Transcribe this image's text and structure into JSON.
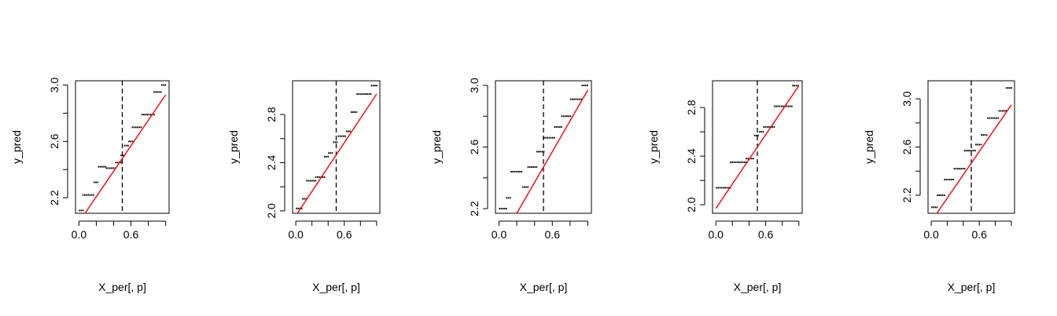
{
  "colors": {
    "points": "#000000",
    "fit_line": "#ff0000",
    "vline": "#000000",
    "frame": "#000000"
  },
  "chart_data": [
    {
      "type": "scatter",
      "xlabel": "X_per[, p]",
      "ylabel": "y_pred",
      "xlim": [
        -0.04,
        1.04
      ],
      "ylim": [
        2.09,
        3.03
      ],
      "xticks": [
        0.0,
        0.2,
        0.4,
        0.6,
        0.8,
        1.0
      ],
      "xtick_labels": [
        "0.0",
        "0.6"
      ],
      "yticks": [
        2.2,
        2.4,
        2.6,
        2.8,
        3.0
      ],
      "ytick_labels": [
        "2.2",
        "2.6",
        "3.0"
      ],
      "vline_x": 0.5,
      "fit_line": {
        "x": [
          0.07,
          1.0
        ],
        "y": [
          2.09,
          2.93
        ]
      },
      "steps": [
        [
          0.0,
          0.04,
          2.11
        ],
        [
          0.04,
          0.16,
          2.22
        ],
        [
          0.17,
          0.22,
          2.31
        ],
        [
          0.22,
          0.31,
          2.42
        ],
        [
          0.31,
          0.42,
          2.41
        ],
        [
          0.42,
          0.48,
          2.45
        ],
        [
          0.48,
          0.52,
          2.5
        ],
        [
          0.52,
          0.57,
          2.57
        ],
        [
          0.57,
          0.61,
          2.6
        ],
        [
          0.61,
          0.72,
          2.7
        ],
        [
          0.72,
          0.86,
          2.79
        ],
        [
          0.86,
          0.95,
          2.95
        ],
        [
          0.95,
          1.0,
          3.0
        ]
      ]
    },
    {
      "type": "scatter",
      "xlabel": "X_per[, p]",
      "ylabel": "y_pred",
      "xlim": [
        -0.04,
        1.04
      ],
      "ylim": [
        1.98,
        3.08
      ],
      "xticks": [
        0.0,
        0.2,
        0.4,
        0.6,
        0.8,
        1.0
      ],
      "xtick_labels": [
        "0.0",
        "0.6"
      ],
      "yticks": [
        2.0,
        2.2,
        2.4,
        2.6,
        2.8
      ],
      "ytick_labels": [
        "2.0",
        "2.4",
        "2.8"
      ],
      "vline_x": 0.5,
      "fit_line": {
        "x": [
          0.02,
          1.0
        ],
        "y": [
          1.98,
          2.97
        ]
      },
      "steps": [
        [
          0.0,
          0.08,
          2.02
        ],
        [
          0.08,
          0.13,
          2.1
        ],
        [
          0.13,
          0.24,
          2.25
        ],
        [
          0.24,
          0.35,
          2.28
        ],
        [
          0.35,
          0.4,
          2.45
        ],
        [
          0.4,
          0.46,
          2.48
        ],
        [
          0.46,
          0.52,
          2.57
        ],
        [
          0.52,
          0.62,
          2.62
        ],
        [
          0.62,
          0.68,
          2.66
        ],
        [
          0.68,
          0.75,
          2.82
        ],
        [
          0.75,
          0.93,
          2.97
        ],
        [
          0.93,
          1.0,
          3.04
        ]
      ]
    },
    {
      "type": "scatter",
      "xlabel": "X_per[, p]",
      "ylabel": "y_pred",
      "xlim": [
        -0.04,
        1.04
      ],
      "ylim": [
        2.17,
        3.03
      ],
      "xticks": [
        0.0,
        0.2,
        0.4,
        0.6,
        0.8,
        1.0
      ],
      "xtick_labels": [
        "0.0",
        "0.6"
      ],
      "yticks": [
        2.2,
        2.4,
        2.6,
        2.8,
        3.0
      ],
      "ytick_labels": [
        "2.2",
        "2.6",
        "3.0"
      ],
      "vline_x": 0.5,
      "fit_line": {
        "x": [
          0.2,
          1.0
        ],
        "y": [
          2.17,
          2.97
        ]
      },
      "steps": [
        [
          0.0,
          0.08,
          2.2
        ],
        [
          0.08,
          0.13,
          2.27
        ],
        [
          0.13,
          0.26,
          2.44
        ],
        [
          0.26,
          0.32,
          2.34
        ],
        [
          0.32,
          0.42,
          2.47
        ],
        [
          0.42,
          0.5,
          2.57
        ],
        [
          0.5,
          0.62,
          2.66
        ],
        [
          0.62,
          0.7,
          2.73
        ],
        [
          0.7,
          0.8,
          2.8
        ],
        [
          0.8,
          0.93,
          2.91
        ],
        [
          0.93,
          1.0,
          3.0
        ]
      ]
    },
    {
      "type": "scatter",
      "xlabel": "X_per[, p]",
      "ylabel": "y_pred",
      "xlim": [
        -0.04,
        1.04
      ],
      "ylim": [
        1.93,
        3.02
      ],
      "xticks": [
        0.0,
        0.2,
        0.4,
        0.6,
        0.8,
        1.0
      ],
      "xtick_labels": [
        "0.0",
        "0.6"
      ],
      "yticks": [
        2.0,
        2.2,
        2.4,
        2.6,
        2.8
      ],
      "ytick_labels": [
        "2.0",
        "2.4",
        "2.8"
      ],
      "vline_x": 0.5,
      "fit_line": {
        "x": [
          0.0,
          1.0
        ],
        "y": [
          1.97,
          2.98
        ]
      },
      "steps": [
        [
          0.0,
          0.17,
          2.14
        ],
        [
          0.17,
          0.36,
          2.35
        ],
        [
          0.36,
          0.46,
          2.38
        ],
        [
          0.46,
          0.52,
          2.57
        ],
        [
          0.52,
          0.57,
          2.6
        ],
        [
          0.57,
          0.7,
          2.64
        ],
        [
          0.7,
          0.92,
          2.81
        ],
        [
          0.92,
          1.0,
          2.98
        ]
      ]
    },
    {
      "type": "scatter",
      "xlabel": "X_per[, p]",
      "ylabel": "y_pred",
      "xlim": [
        -0.04,
        1.04
      ],
      "ylim": [
        2.05,
        3.15
      ],
      "xticks": [
        0.0,
        0.2,
        0.4,
        0.6,
        0.8,
        1.0
      ],
      "xtick_labels": [
        "0.0",
        "0.6"
      ],
      "yticks": [
        2.2,
        2.4,
        2.6,
        2.8,
        3.0
      ],
      "ytick_labels": [
        "2.2",
        "2.6",
        "3.0"
      ],
      "vline_x": 0.5,
      "fit_line": {
        "x": [
          0.07,
          1.0
        ],
        "y": [
          2.05,
          2.95
        ]
      },
      "steps": [
        [
          0.0,
          0.07,
          2.1
        ],
        [
          0.07,
          0.16,
          2.2
        ],
        [
          0.16,
          0.28,
          2.33
        ],
        [
          0.28,
          0.41,
          2.42
        ],
        [
          0.41,
          0.55,
          2.57
        ],
        [
          0.55,
          0.62,
          2.62
        ],
        [
          0.62,
          0.7,
          2.7
        ],
        [
          0.7,
          0.84,
          2.84
        ],
        [
          0.84,
          0.93,
          2.9
        ],
        [
          0.93,
          1.0,
          3.09
        ]
      ]
    }
  ]
}
